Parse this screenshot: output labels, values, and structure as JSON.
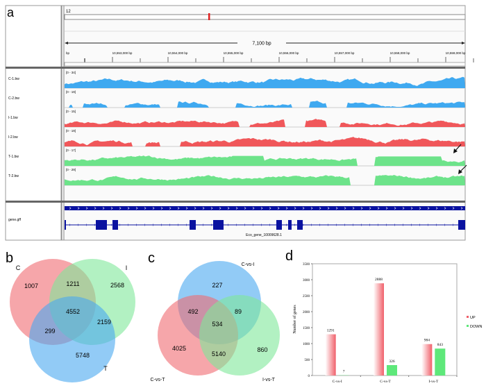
{
  "panels": {
    "a": "a",
    "b": "b",
    "c": "c",
    "d": "d"
  },
  "igv": {
    "chromosome": "12",
    "span_label": "7,100 bp",
    "ruler_ticks": [
      "bp",
      "10,553,000 bp",
      "10,554,000 bp",
      "10,555,000 bp",
      "10,556,000 bp",
      "10,557,000 bp",
      "10,558,000 bp",
      "10,559,000 bp"
    ],
    "tracks": [
      {
        "name": "C-1.bw",
        "range": "[0 - 34]",
        "color": "#3fa9f0"
      },
      {
        "name": "C-2.bw",
        "range": "[0 - 19]",
        "color": "#3fa9f0"
      },
      {
        "name": "I-1.bw",
        "range": "[0 - 15]",
        "color": "#f0575a"
      },
      {
        "name": "I-2.bw",
        "range": "[0 - 19]",
        "color": "#f0575a"
      },
      {
        "name": "T-1.bw",
        "range": "[0 - 17]",
        "color": "#6de38a"
      },
      {
        "name": "T-2.bw",
        "range": "[0 - 29]",
        "color": "#6de38a"
      }
    ],
    "annotation_track": "gene.gff",
    "gene_label": "Eco_gene_10009628.1",
    "gene_color": "#0a12a0"
  },
  "venn_b": {
    "sets": [
      "C",
      "I",
      "T"
    ],
    "colors": [
      "#f06a72",
      "#7fe89a",
      "#4aa8f0"
    ],
    "regions": {
      "C_only": "1007",
      "C_I": "1211",
      "I_only": "2568",
      "C_I_T": "4552",
      "C_T": "299",
      "I_T": "2159",
      "T_only": "5748"
    }
  },
  "venn_c": {
    "sets": [
      "C-vs-I",
      "C-vs-T",
      "I-vs-T"
    ],
    "colors": [
      "#4aa8f0",
      "#f06a72",
      "#7fe89a"
    ],
    "regions": {
      "CI_only": "227",
      "CI_CT": "492",
      "CI_IT": "89",
      "all": "534",
      "CT_only": "4025",
      "CT_IT": "5140",
      "IT_only": "860"
    }
  },
  "chart_data": {
    "type": "bar",
    "categories": [
      "C-vs-I",
      "C-vs-T",
      "I-vs-T"
    ],
    "series": [
      {
        "name": "UP",
        "values": [
          1291,
          2888,
          984
        ],
        "color": "#f0606a"
      },
      {
        "name": "DOWN",
        "values": [
          7,
          326,
          843
        ],
        "color": "#5ee87a"
      }
    ],
    "ylabel": "Number of genes",
    "xlabel": "",
    "ylim": [
      0,
      3500
    ],
    "yticks": [
      0,
      500,
      1000,
      1500,
      2000,
      2500,
      3000,
      3500
    ],
    "legend": "right",
    "grid": false
  }
}
